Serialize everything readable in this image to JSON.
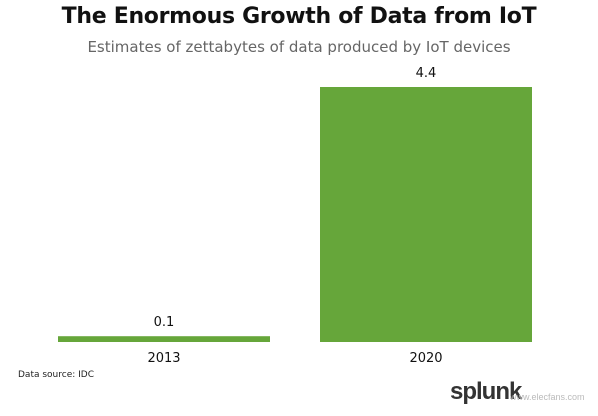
{
  "chart_data": {
    "type": "bar",
    "title": "The Enormous Growth of Data from IoT",
    "subtitle": "Estimates of zettabytes of data produced by IoT devices",
    "categories": [
      "2013",
      "2020"
    ],
    "values": [
      0.1,
      4.4
    ],
    "data_labels": [
      "0.1",
      "4.4"
    ],
    "ylim": [
      0,
      4.4
    ],
    "grid": false,
    "legend": "none",
    "bar_color": "#66a63a",
    "source": "Data source: IDC"
  },
  "watermark": {
    "logo_text": "splunk",
    "site_text": "www.elecfans.com"
  }
}
